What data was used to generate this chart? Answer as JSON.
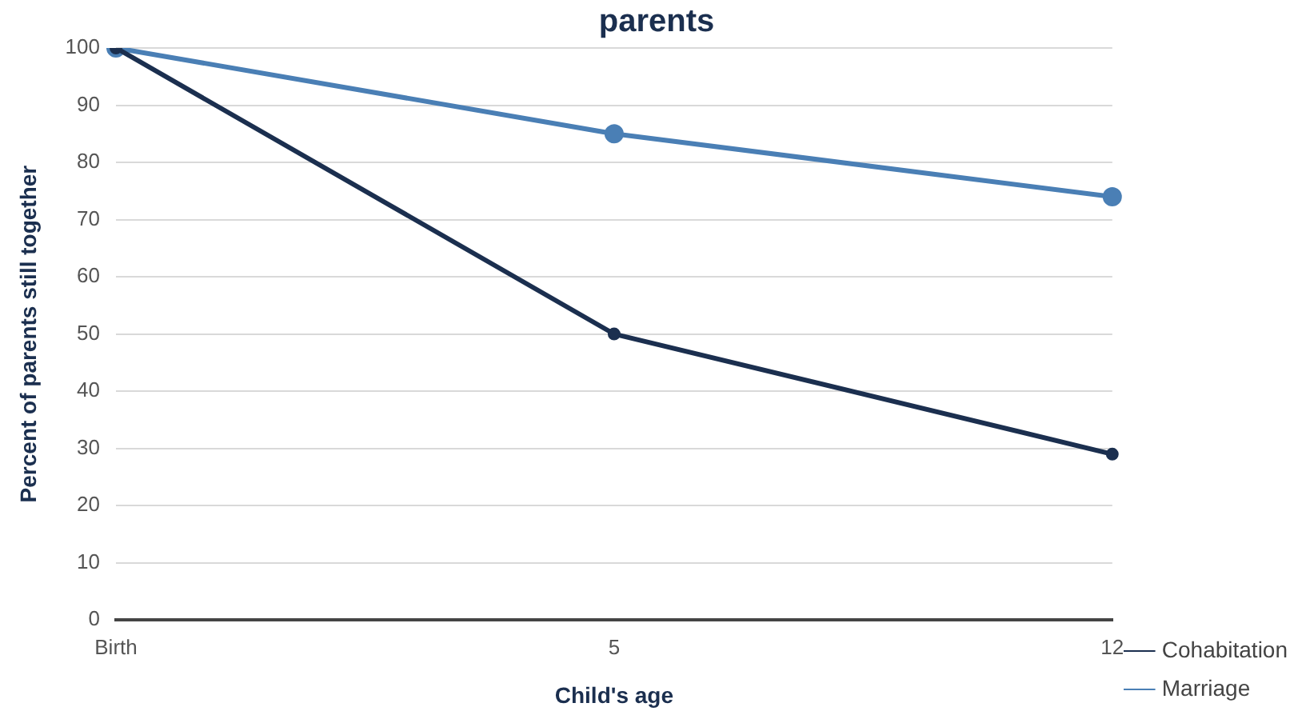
{
  "chart_data": {
    "type": "line",
    "title": "parents",
    "xlabel": "Child's age",
    "ylabel": "Percent of parents still together",
    "categories": [
      "Birth",
      "5",
      "12"
    ],
    "series": [
      {
        "name": "Cohabitation",
        "color": "#1b2f4f",
        "values": [
          100,
          50,
          29
        ]
      },
      {
        "name": "Marriage",
        "color": "#4a7fb5",
        "values": [
          100,
          85,
          74
        ]
      }
    ],
    "ylim": [
      0,
      100
    ],
    "yticks": [
      0,
      10,
      20,
      30,
      40,
      50,
      60,
      70,
      80,
      90,
      100
    ],
    "grid": "y",
    "legend": "bottom right",
    "marker": "circle",
    "line_style": "solid"
  }
}
